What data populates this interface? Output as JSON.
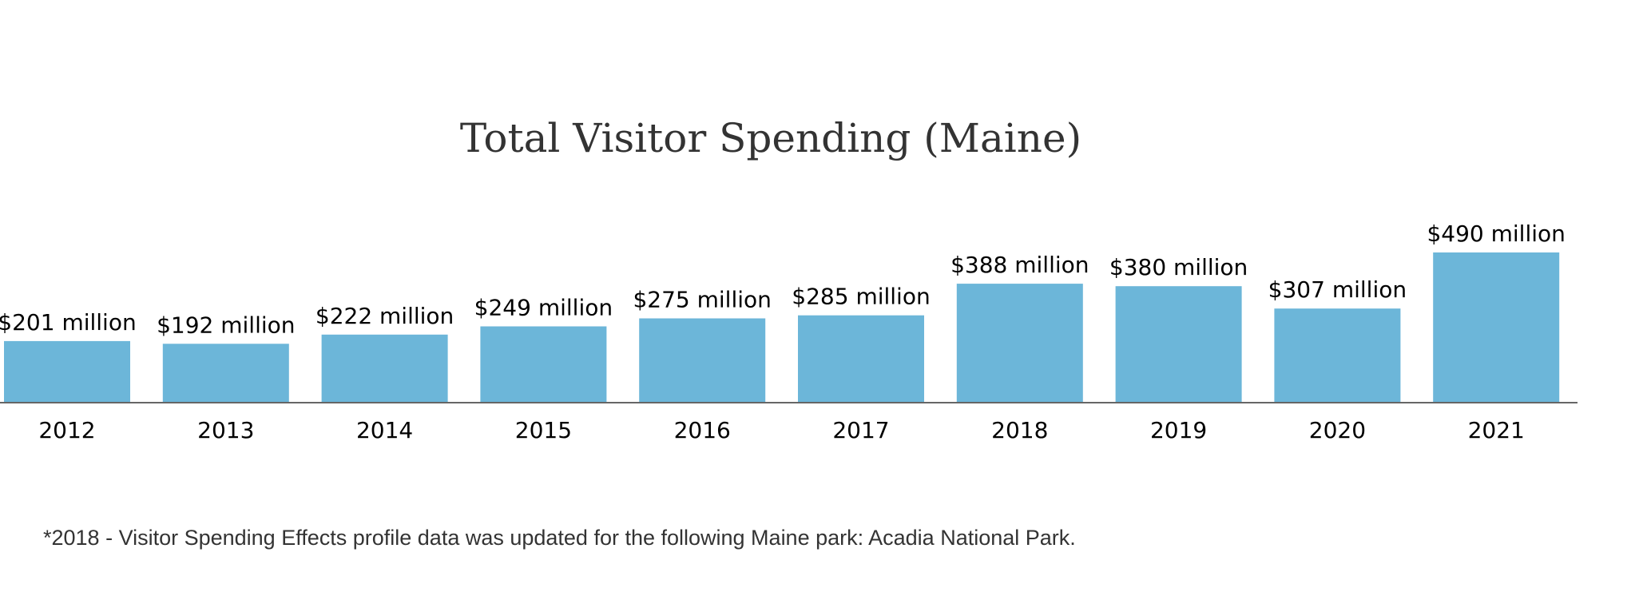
{
  "chart_data": {
    "type": "bar",
    "title": "Total Visitor Spending (Maine)",
    "xlabel": "",
    "ylabel": "",
    "categories": [
      "2012",
      "2013",
      "2014",
      "2015",
      "2016",
      "2017",
      "2018",
      "2019",
      "2020",
      "2021"
    ],
    "values": [
      201,
      192,
      222,
      249,
      275,
      285,
      388,
      380,
      307,
      490
    ],
    "data_labels": [
      "$201 million",
      "$192 million",
      "$222 million",
      "$249 million",
      "$275 million",
      "$285 million",
      "$388 million",
      "$380 million",
      "$307 million",
      "$490 million"
    ],
    "value_unit": "million USD",
    "ylim": [
      0,
      490
    ],
    "grid": false,
    "legend": "none",
    "bar_color": "#6cb6d9",
    "axis_color": "#666666"
  },
  "footnote": "*2018 - Visitor Spending Effects profile data was updated for the following Maine park: Acadia National Park."
}
